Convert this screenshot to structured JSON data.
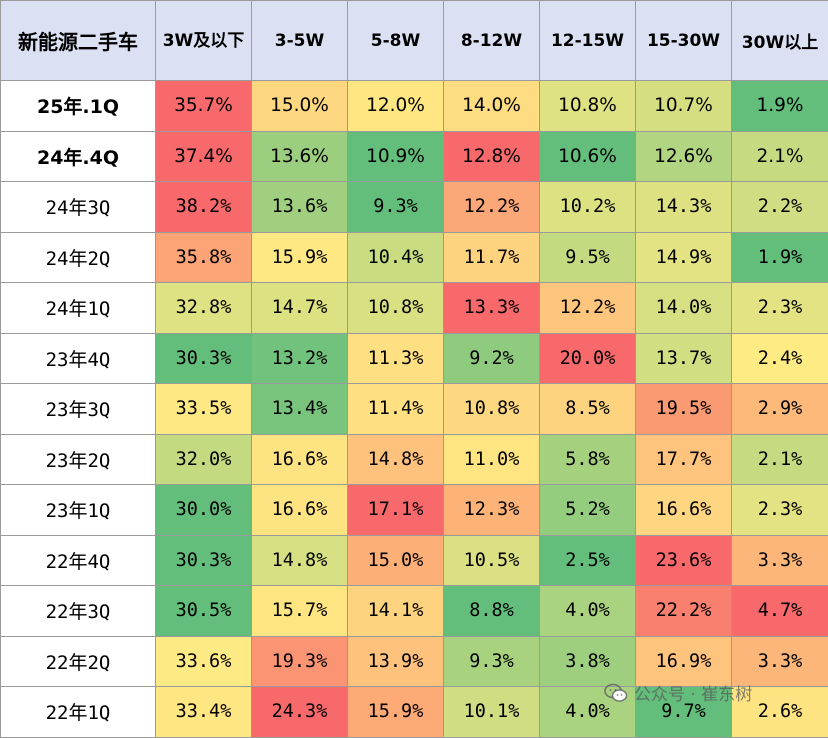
{
  "header": {
    "corner": "新能源二手车",
    "columns": [
      "3W及以下",
      "3-5W",
      "5-8W",
      "8-12W",
      "12-15W",
      "15-30W",
      "30W以上"
    ]
  },
  "chart_data": {
    "type": "table",
    "title": "",
    "columns": [
      "3W及以下",
      "3-5W",
      "5-8W",
      "8-12W",
      "12-15W",
      "15-30W",
      "30W以上"
    ],
    "rows": [
      {
        "label": "25年.1Q",
        "values": [
          "35.7%",
          "15.0%",
          "12.0%",
          "14.0%",
          "10.8%",
          "10.7%",
          "1.9%"
        ],
        "colors": [
          "#f8696b",
          "#fed880",
          "#fee683",
          "#fedc81",
          "#dfe283",
          "#d5df82",
          "#63be7b"
        ]
      },
      {
        "label": "24年.4Q",
        "values": [
          "37.4%",
          "13.6%",
          "10.9%",
          "12.8%",
          "10.6%",
          "12.6%",
          "2.1%"
        ],
        "colors": [
          "#f8696b",
          "#9bcf7f",
          "#63be7b",
          "#f8696b",
          "#63be7b",
          "#b1d580",
          "#c6db81"
        ]
      },
      {
        "label": "24年3Q",
        "values": [
          "38.2%",
          "13.6%",
          "9.3%",
          "12.2%",
          "10.2%",
          "14.3%",
          "2.2%"
        ],
        "colors": [
          "#f8696b",
          "#a0d07f",
          "#63be7b",
          "#fba777",
          "#dce182",
          "#dde182",
          "#d0dd82"
        ]
      },
      {
        "label": "24年2Q",
        "values": [
          "35.8%",
          "15.9%",
          "10.4%",
          "11.7%",
          "9.5%",
          "14.9%",
          "1.9%"
        ],
        "colors": [
          "#fca475",
          "#fee883",
          "#c9dc81",
          "#fed380",
          "#c3da81",
          "#e3e383",
          "#63be7b"
        ]
      },
      {
        "label": "24年1Q",
        "values": [
          "32.8%",
          "14.7%",
          "10.8%",
          "13.3%",
          "12.2%",
          "14.0%",
          "2.3%"
        ],
        "colors": [
          "#dfe283",
          "#dce182",
          "#d8e082",
          "#f8696b",
          "#fec57d",
          "#d6df82",
          "#e3e383"
        ]
      },
      {
        "label": "23年4Q",
        "values": [
          "30.3%",
          "13.2%",
          "11.3%",
          "9.2%",
          "20.0%",
          "13.7%",
          "2.4%"
        ],
        "colors": [
          "#63be7b",
          "#71c27c",
          "#fee082",
          "#8fcb7e",
          "#f8696b",
          "#d2de82",
          "#feeb84"
        ]
      },
      {
        "label": "23年3Q",
        "values": [
          "33.5%",
          "13.4%",
          "11.4%",
          "10.8%",
          "8.5%",
          "19.5%",
          "2.9%"
        ],
        "colors": [
          "#fee883",
          "#79c47d",
          "#fee082",
          "#fed880",
          "#fed37f",
          "#fa9a73",
          "#fdb97a"
        ]
      },
      {
        "label": "23年2Q",
        "values": [
          "32.0%",
          "16.6%",
          "14.8%",
          "11.0%",
          "5.8%",
          "17.7%",
          "2.1%"
        ],
        "colors": [
          "#c4da81",
          "#fee383",
          "#fec27c",
          "#fee582",
          "#a5d17f",
          "#fec37c",
          "#c6db81"
        ]
      },
      {
        "label": "23年1Q",
        "values": [
          "30.0%",
          "16.6%",
          "17.1%",
          "12.3%",
          "5.2%",
          "16.6%",
          "2.3%"
        ],
        "colors": [
          "#63be7b",
          "#fee383",
          "#f8696b",
          "#fdb378",
          "#94cd7e",
          "#fed580",
          "#e3e383"
        ]
      },
      {
        "label": "22年4Q",
        "values": [
          "30.3%",
          "14.8%",
          "15.0%",
          "10.5%",
          "2.5%",
          "23.6%",
          "3.3%"
        ],
        "colors": [
          "#63be7b",
          "#d6e082",
          "#fdaf78",
          "#dbe182",
          "#63be7b",
          "#f8696b",
          "#fdb679"
        ]
      },
      {
        "label": "22年3Q",
        "values": [
          "30.5%",
          "15.7%",
          "14.1%",
          "8.8%",
          "4.0%",
          "22.2%",
          "4.7%"
        ],
        "colors": [
          "#63be7b",
          "#fee582",
          "#fdd37f",
          "#63be7b",
          "#aad380",
          "#f97f6f",
          "#f8696b"
        ]
      },
      {
        "label": "22年2Q",
        "values": [
          "33.6%",
          "19.3%",
          "13.9%",
          "9.3%",
          "3.8%",
          "16.9%",
          "3.3%"
        ],
        "colors": [
          "#feea84",
          "#fb9473",
          "#fec27c",
          "#a9d27f",
          "#9ecf7f",
          "#fec37c",
          "#fdb679"
        ]
      },
      {
        "label": "22年1Q",
        "values": [
          "33.4%",
          "24.3%",
          "15.9%",
          "10.1%",
          "4.0%",
          "9.7%",
          "2.6%"
        ],
        "colors": [
          "#fee683",
          "#f8696b",
          "#fdaa76",
          "#d0dd82",
          "#aad380",
          "#63be7b",
          "#fee383"
        ]
      }
    ]
  },
  "watermark": {
    "text": "公众号 · 崔东树"
  }
}
